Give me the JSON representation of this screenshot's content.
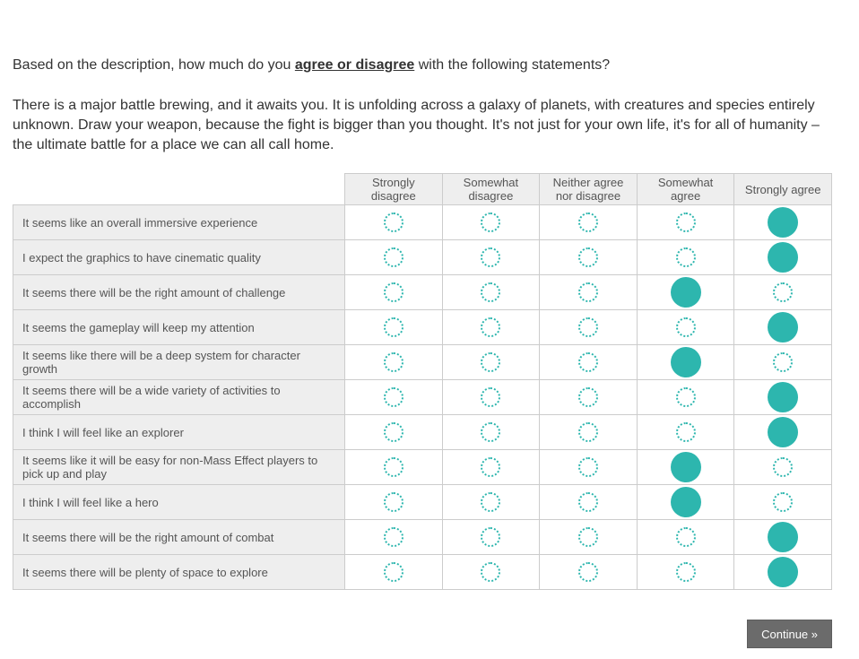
{
  "question": {
    "prefix": "Based on the description, how much do you ",
    "emphasis": "agree or disagree",
    "suffix": " with the following statements?"
  },
  "description": "There is a major battle brewing, and it awaits you. It is unfolding across a galaxy of planets, with creatures and species entirely unknown. Draw your weapon, because the fight is bigger than you thought. It's not just for your own life, it's for all of humanity – the ultimate battle for a place we can all call home.",
  "table": {
    "columns": [
      "Strongly disagree",
      "Somewhat disagree",
      "Neither agree nor disagree",
      "Somewhat agree",
      "Strongly agree"
    ],
    "rows": [
      {
        "label": "It seems like an overall immersive experience",
        "selected": 4
      },
      {
        "label": "I expect the graphics to have cinematic quality",
        "selected": 4
      },
      {
        "label": "It seems there will be the right amount of challenge",
        "selected": 3
      },
      {
        "label": "It seems the gameplay will keep my attention",
        "selected": 4
      },
      {
        "label": "It seems like there will be a deep system for character growth",
        "selected": 3
      },
      {
        "label": "It seems there will be a wide variety of activities to accomplish",
        "selected": 4
      },
      {
        "label": "I think I will feel like an explorer",
        "selected": 4
      },
      {
        "label": "It seems like it will be easy for non-Mass Effect players to pick up and play",
        "selected": 3
      },
      {
        "label": "I think I will feel like a hero",
        "selected": 3
      },
      {
        "label": "It seems there will be the right amount of combat",
        "selected": 4
      },
      {
        "label": "It seems there will be plenty of space to explore",
        "selected": 4
      }
    ]
  },
  "footer": {
    "continue_label": "Continue »"
  },
  "colors": {
    "accent": "#2db6ae",
    "cell_border": "#cccccc",
    "shaded_background": "#eeeeee",
    "table_text": "#555555",
    "body_text": "#333333",
    "button_background": "#6b6b6b"
  }
}
